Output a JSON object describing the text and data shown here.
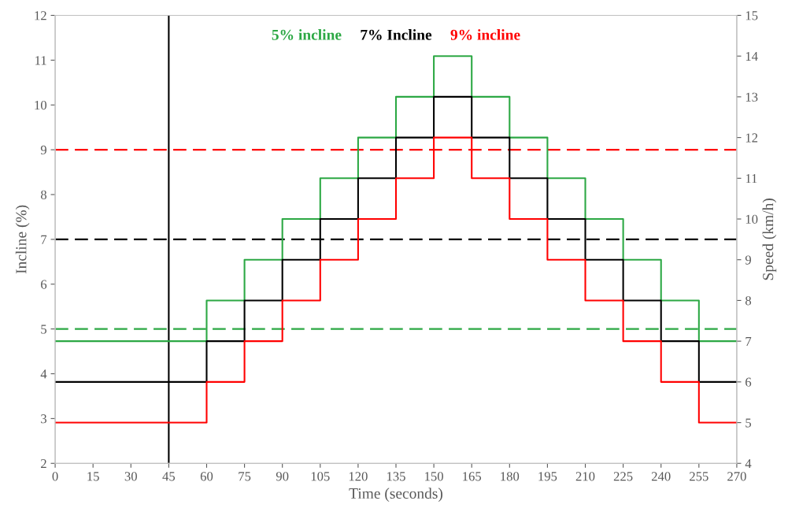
{
  "chart_data": {
    "type": "step",
    "xlabel": "Time (seconds)",
    "ylabel": "Incline (%)",
    "y2label": "Speed (km/h)",
    "x": [
      0,
      60,
      75,
      90,
      105,
      120,
      135,
      150,
      165,
      180,
      195,
      210,
      225,
      240,
      255,
      270
    ],
    "series": [
      {
        "name": "5% incline",
        "color": "#2ca844",
        "axis": "y2",
        "values": [
          7,
          8,
          9,
          10,
          11,
          12,
          13,
          14,
          13,
          12,
          11,
          10,
          9,
          8,
          7,
          7
        ]
      },
      {
        "name": "7% Incline",
        "color": "#000000",
        "axis": "y2",
        "values": [
          6,
          7,
          8,
          9,
          10,
          11,
          12,
          13,
          12,
          11,
          10,
          9,
          8,
          7,
          6,
          6
        ]
      },
      {
        "name": "9% incline",
        "color": "#ff0000",
        "axis": "y2",
        "values": [
          5,
          6,
          7,
          8,
          9,
          10,
          11,
          12,
          11,
          10,
          9,
          8,
          7,
          6,
          5,
          5
        ]
      }
    ],
    "xlim": [
      0,
      270
    ],
    "xticks": [
      0,
      15,
      30,
      45,
      60,
      75,
      90,
      105,
      120,
      135,
      150,
      165,
      180,
      195,
      210,
      225,
      240,
      255,
      270
    ],
    "ylim": [
      2,
      12
    ],
    "yticks": [
      2,
      3,
      4,
      5,
      6,
      7,
      8,
      9,
      10,
      11,
      12
    ],
    "y2lim": [
      4,
      15
    ],
    "y2ticks": [
      4,
      5,
      6,
      7,
      8,
      9,
      10,
      11,
      12,
      13,
      14,
      15
    ],
    "ref_lines": [
      {
        "axis": "y",
        "value": 5,
        "color": "#2ca844",
        "line_style": "dashed"
      },
      {
        "axis": "y",
        "value": 7,
        "color": "#000000",
        "line_style": "dashed"
      },
      {
        "axis": "y",
        "value": 9,
        "color": "#ff0000",
        "line_style": "dashed"
      },
      {
        "axis": "x",
        "value": 45,
        "color": "#000000",
        "line_style": "solid"
      }
    ],
    "legend": "top",
    "grid": false,
    "marker": "none",
    "line_style": "solid"
  }
}
